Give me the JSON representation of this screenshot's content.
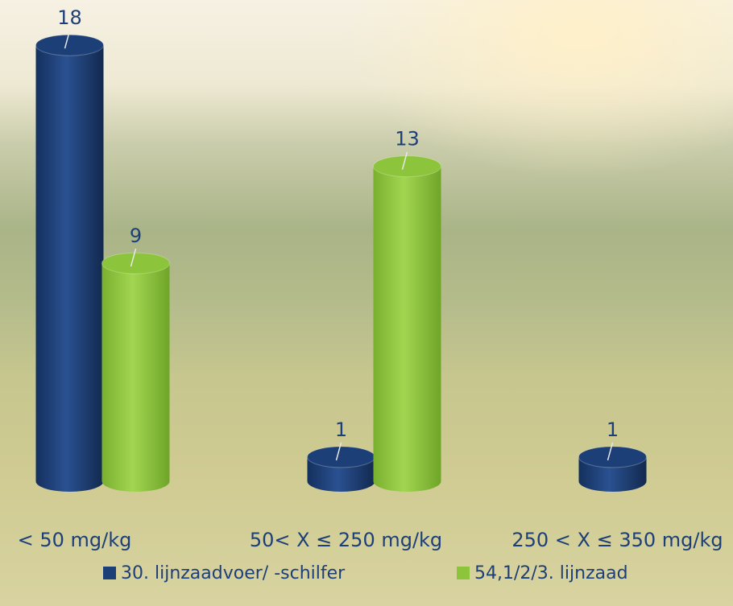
{
  "chart_data": {
    "type": "bar3d",
    "categories": [
      "< 50 mg/kg",
      "50< X ≤ 250 mg/kg",
      "250 < X ≤ 350 mg/kg"
    ],
    "series": [
      {
        "name": "30. lijnzaadvoer/ -schilfer",
        "color": "#1d3f78",
        "values": [
          18,
          1,
          1
        ]
      },
      {
        "name": "54,1/2/3. lijnzaad",
        "color": "#8cc43c",
        "values": [
          9,
          13,
          null
        ]
      }
    ],
    "legend": "bottom"
  }
}
